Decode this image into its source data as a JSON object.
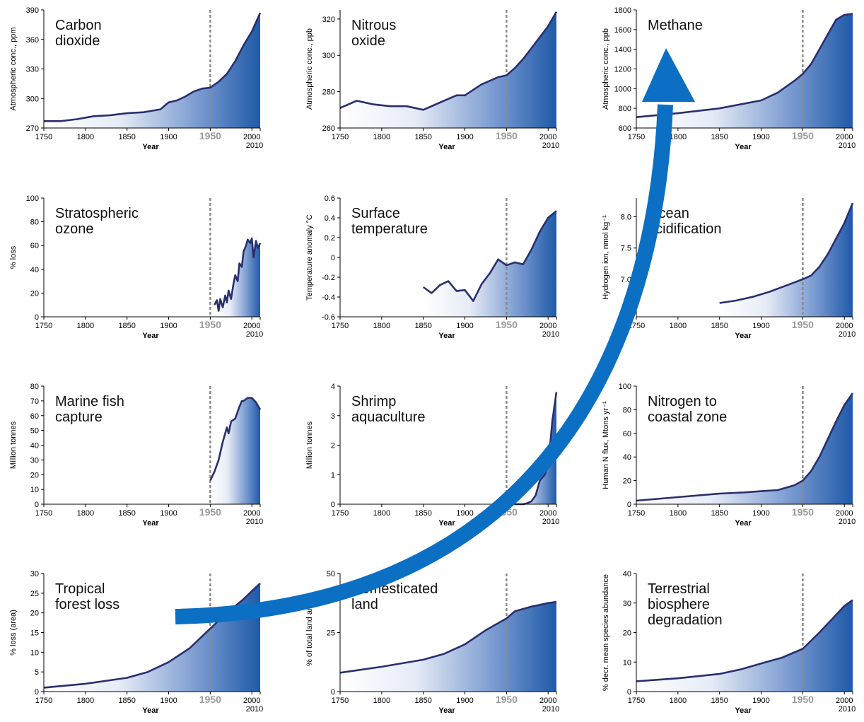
{
  "chart_data": [
    {
      "type": "area",
      "title_lines": [
        "Carbon",
        "dioxide"
      ],
      "ylabel": "Atmospheric conc., ppm",
      "xlabel": "Year",
      "xlim": [
        1750,
        2010
      ],
      "ylim": [
        270,
        390
      ],
      "yticks": [
        "270",
        "300",
        "330",
        "360",
        "390"
      ],
      "xticks": [
        "1750",
        "1800",
        "1850",
        "1900",
        "1950",
        "2000"
      ],
      "end_label": "2010",
      "marker_label": "1950",
      "x": [
        1750,
        1770,
        1790,
        1810,
        1830,
        1850,
        1870,
        1890,
        1900,
        1910,
        1920,
        1930,
        1940,
        1950,
        1960,
        1970,
        1980,
        1990,
        2000,
        2010
      ],
      "y": [
        277,
        277,
        279,
        282,
        283,
        285,
        286,
        289,
        296,
        298,
        302,
        307,
        310,
        311,
        317,
        325,
        338,
        354,
        368,
        387
      ]
    },
    {
      "type": "area",
      "title_lines": [
        "Nitrous",
        "oxide"
      ],
      "ylabel": "Atmospheric conc., ppb",
      "xlabel": "Year",
      "xlim": [
        1750,
        2010
      ],
      "ylim": [
        260,
        325
      ],
      "yticks": [
        "260",
        "280",
        "300",
        "320"
      ],
      "xticks": [
        "1750",
        "1800",
        "1850",
        "1900",
        "1950",
        "2000"
      ],
      "end_label": "2010",
      "marker_label": "1950",
      "x": [
        1750,
        1770,
        1790,
        1810,
        1830,
        1850,
        1870,
        1890,
        1900,
        1920,
        1940,
        1950,
        1960,
        1970,
        1980,
        1990,
        2000,
        2010
      ],
      "y": [
        271,
        275,
        273,
        272,
        272,
        270,
        274,
        278,
        278,
        284,
        288,
        289,
        293,
        298,
        304,
        310,
        316,
        324
      ]
    },
    {
      "type": "area",
      "title_lines": [
        "Methane"
      ],
      "ylabel": "Atmospheric conc., ppb",
      "xlabel": "Year",
      "xlim": [
        1750,
        2010
      ],
      "ylim": [
        600,
        1800
      ],
      "yticks": [
        "600",
        "800",
        "1000",
        "1200",
        "1400",
        "1600",
        "1800"
      ],
      "xticks": [
        "1750",
        "1800",
        "1850",
        "1900",
        "1950",
        "2000"
      ],
      "end_label": "2010",
      "marker_label": "1950",
      "x": [
        1750,
        1800,
        1850,
        1900,
        1920,
        1940,
        1950,
        1960,
        1970,
        1980,
        1990,
        2000,
        2010
      ],
      "y": [
        710,
        750,
        800,
        880,
        960,
        1080,
        1150,
        1250,
        1400,
        1550,
        1700,
        1750,
        1760
      ]
    },
    {
      "type": "area",
      "title_lines": [
        "Stratospheric",
        "ozone"
      ],
      "ylabel": "% loss",
      "xlabel": "Year",
      "xlim": [
        1750,
        2010
      ],
      "ylim": [
        0,
        100
      ],
      "yticks": [
        "0",
        "20",
        "40",
        "60",
        "80",
        "100"
      ],
      "xticks": [
        "1750",
        "1800",
        "1850",
        "1900",
        "1950",
        "2000"
      ],
      "end_label": "2010",
      "marker_label": "1950",
      "x": [
        1955,
        1958,
        1960,
        1962,
        1965,
        1968,
        1970,
        1972,
        1975,
        1978,
        1980,
        1983,
        1985,
        1988,
        1990,
        1993,
        1995,
        1998,
        2000,
        2002,
        2005,
        2007,
        2010
      ],
      "y": [
        10,
        14,
        5,
        15,
        8,
        18,
        12,
        22,
        15,
        28,
        35,
        30,
        45,
        42,
        55,
        60,
        65,
        62,
        66,
        50,
        64,
        58,
        62
      ]
    },
    {
      "type": "area",
      "title_lines": [
        "Surface",
        "temperature"
      ],
      "ylabel": "Temperature anomaly °C",
      "xlabel": "Year",
      "xlim": [
        1750,
        2010
      ],
      "ylim": [
        -0.6,
        0.6
      ],
      "yticks": [
        "-0.6",
        "-0.4",
        "-0.2",
        "0",
        "0.2",
        "0.4",
        "0.6"
      ],
      "xticks": [
        "1750",
        "1800",
        "1850",
        "1900",
        "1950",
        "2000"
      ],
      "end_label": "2010",
      "marker_label": "1950",
      "x": [
        1850,
        1860,
        1870,
        1880,
        1890,
        1900,
        1910,
        1920,
        1930,
        1940,
        1950,
        1960,
        1970,
        1980,
        1990,
        2000,
        2010
      ],
      "y": [
        -0.3,
        -0.36,
        -0.28,
        -0.24,
        -0.34,
        -0.33,
        -0.44,
        -0.27,
        -0.16,
        -0.02,
        -0.08,
        -0.05,
        -0.07,
        0.08,
        0.26,
        0.4,
        0.47
      ]
    },
    {
      "type": "area",
      "title_lines": [
        "Ocean",
        "acidification"
      ],
      "ylabel": "Hydrogen ion, nmol kg⁻¹",
      "xlabel": "Year",
      "xlim": [
        1750,
        2010
      ],
      "ylim": [
        6.4,
        8.3
      ],
      "yticks": [
        "7.0",
        "7.5",
        "8.0"
      ],
      "xticks": [
        "1750",
        "1800",
        "1850",
        "1900",
        "1950",
        "2000"
      ],
      "end_label": "2010",
      "marker_label": "1950",
      "x": [
        1850,
        1870,
        1890,
        1910,
        1930,
        1950,
        1960,
        1970,
        1980,
        1990,
        2000,
        2010
      ],
      "y": [
        6.62,
        6.66,
        6.72,
        6.8,
        6.9,
        7.0,
        7.06,
        7.2,
        7.4,
        7.65,
        7.9,
        8.22
      ]
    },
    {
      "type": "area",
      "title_lines": [
        "Marine fish",
        "capture"
      ],
      "ylabel": "Million tonnes",
      "xlabel": "Year",
      "xlim": [
        1750,
        2010
      ],
      "ylim": [
        0,
        80
      ],
      "yticks": [
        "0",
        "10",
        "20",
        "30",
        "40",
        "50",
        "60",
        "70",
        "80"
      ],
      "xticks": [
        "1750",
        "1800",
        "1850",
        "1900",
        "1950",
        "2000"
      ],
      "end_label": "2010",
      "marker_label": "1950",
      "x": [
        1950,
        1955,
        1960,
        1965,
        1970,
        1972,
        1975,
        1980,
        1985,
        1988,
        1990,
        1995,
        2000,
        2005,
        2010
      ],
      "y": [
        16,
        22,
        30,
        42,
        52,
        48,
        56,
        58,
        66,
        70,
        70,
        72,
        72,
        69,
        64
      ]
    },
    {
      "type": "area",
      "title_lines": [
        "Shrimp",
        "aquaculture"
      ],
      "ylabel": "Million tonnes",
      "xlabel": "Year",
      "xlim": [
        1750,
        2010
      ],
      "ylim": [
        0,
        4
      ],
      "yticks": [
        "0",
        "1",
        "2",
        "3",
        "4"
      ],
      "xticks": [
        "1750",
        "1800",
        "1850",
        "1900",
        "1950",
        "2000"
      ],
      "end_label": "2010",
      "marker_label": "1950",
      "x": [
        1950,
        1970,
        1975,
        1980,
        1985,
        1988,
        1990,
        1993,
        1996,
        2000,
        2003,
        2005,
        2008,
        2010
      ],
      "y": [
        0,
        0,
        0.03,
        0.1,
        0.3,
        0.6,
        0.8,
        0.9,
        1.0,
        1.3,
        2.2,
        2.8,
        3.4,
        3.8
      ]
    },
    {
      "type": "area",
      "title_lines": [
        "Nitrogen to",
        "coastal zone"
      ],
      "ylabel": "Human N flux, Mtons yr⁻¹",
      "xlabel": "Year",
      "xlim": [
        1750,
        2010
      ],
      "ylim": [
        0,
        100
      ],
      "yticks": [
        "0",
        "20",
        "40",
        "60",
        "80",
        "100"
      ],
      "xticks": [
        "1750",
        "1800",
        "1850",
        "1900",
        "1950",
        "2000"
      ],
      "end_label": "2010",
      "marker_label": "1950",
      "x": [
        1750,
        1800,
        1850,
        1880,
        1900,
        1920,
        1940,
        1950,
        1960,
        1970,
        1980,
        1990,
        2000,
        2010
      ],
      "y": [
        3,
        6,
        9,
        10,
        11,
        12,
        16,
        20,
        28,
        40,
        55,
        70,
        84,
        94
      ]
    },
    {
      "type": "area",
      "title_lines": [
        "Tropical",
        "forest loss"
      ],
      "ylabel": "% loss (area)",
      "xlabel": "Year",
      "xlim": [
        1750,
        2010
      ],
      "ylim": [
        0,
        30
      ],
      "yticks": [
        "0",
        "5",
        "10",
        "15",
        "20",
        "25",
        "30"
      ],
      "xticks": [
        "1750",
        "1800",
        "1850",
        "1900",
        "1950",
        "2000"
      ],
      "end_label": "2010",
      "marker_label": "1950",
      "x": [
        1750,
        1800,
        1850,
        1875,
        1900,
        1925,
        1950,
        1970,
        1990,
        2000,
        2010
      ],
      "y": [
        1,
        2,
        3.5,
        5,
        7.5,
        11,
        16,
        20,
        23.5,
        25.5,
        27.5
      ]
    },
    {
      "type": "area",
      "title_lines": [
        "Domesticated",
        "land"
      ],
      "ylabel": "% of total land area",
      "xlabel": "Year",
      "xlim": [
        1750,
        2010
      ],
      "ylim": [
        0,
        50
      ],
      "yticks": [
        "0",
        "25",
        "50"
      ],
      "xticks": [
        "1750",
        "1800",
        "1850",
        "1900",
        "1950",
        "2000"
      ],
      "end_label": "2010",
      "marker_label": "1950",
      "x": [
        1750,
        1800,
        1850,
        1875,
        1900,
        1925,
        1950,
        1960,
        1980,
        2000,
        2010
      ],
      "y": [
        8,
        10.5,
        13.5,
        16,
        20,
        26,
        31,
        34,
        36,
        37.5,
        38
      ]
    },
    {
      "type": "area",
      "title_lines": [
        "Terrestrial",
        "biosphere",
        "degradation"
      ],
      "ylabel": "% decr. mean species abundance",
      "xlabel": "Year",
      "xlim": [
        1750,
        2010
      ],
      "ylim": [
        0,
        40
      ],
      "yticks": [
        "0",
        "10",
        "20",
        "30",
        "40"
      ],
      "xticks": [
        "1750",
        "1800",
        "1850",
        "1900",
        "1950",
        "2000"
      ],
      "end_label": "2010",
      "marker_label": "1950",
      "x": [
        1750,
        1800,
        1850,
        1875,
        1900,
        1925,
        1950,
        1970,
        1990,
        2000,
        2010
      ],
      "y": [
        3.5,
        4.5,
        6,
        7.5,
        9.5,
        11.5,
        14.5,
        20,
        26,
        29,
        31
      ]
    }
  ],
  "colors": {
    "line": "#2a2f6e",
    "fill_light": "#ffffff",
    "fill_dark": "#1f5aa8",
    "axis": "#000000",
    "marker_line": "#8a8a8a",
    "marker_text": "#999999",
    "arrow": "#0b6fc4"
  }
}
